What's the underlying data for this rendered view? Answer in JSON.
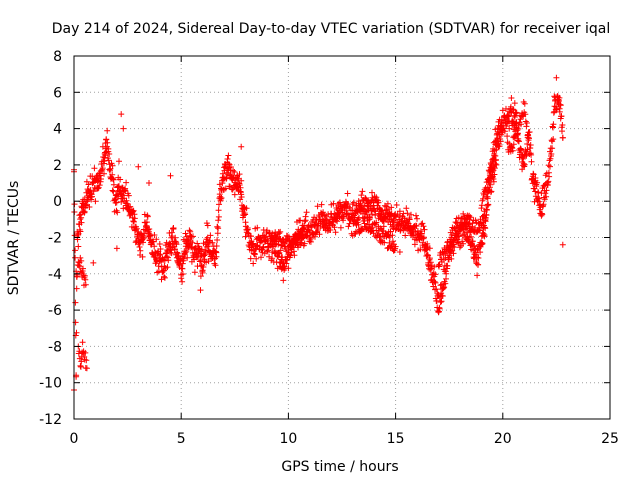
{
  "chart_data": {
    "type": "scatter",
    "title": "Day 214 of 2024, Sidereal Day-to-day VTEC variation (SDTVAR) for receiver iqal",
    "xlabel": "GPS time / hours",
    "ylabel": "SDTVAR / TECUs",
    "xlim": [
      0,
      25
    ],
    "ylim": [
      -12,
      8
    ],
    "xticks": [
      0,
      5,
      10,
      15,
      20,
      25
    ],
    "yticks": [
      -12,
      -10,
      -8,
      -6,
      -4,
      -2,
      0,
      2,
      4,
      6,
      8
    ],
    "grid": true,
    "marker": "+",
    "series": [
      {
        "name": "SDTVAR",
        "color": "#ff0000",
        "profile": {
          "x": [
            0.0,
            0.05,
            0.1,
            0.15,
            0.25,
            0.35,
            0.5,
            0.6,
            0.8,
            1.0,
            1.2,
            1.4,
            1.5,
            1.7,
            1.9,
            2.1,
            2.3,
            2.6,
            2.8,
            3.0,
            3.2,
            3.4,
            3.6,
            3.8,
            4.0,
            4.2,
            4.4,
            4.6,
            4.8,
            5.0,
            5.2,
            5.4,
            5.6,
            5.8,
            6.0,
            6.2,
            6.4,
            6.6,
            6.8,
            7.0,
            7.2,
            7.4,
            7.6,
            7.8,
            8.0,
            8.2,
            8.4,
            8.6,
            8.8,
            9.0,
            9.2,
            9.4,
            9.6,
            9.8,
            10.0,
            10.2,
            10.4,
            10.6,
            10.8,
            11.0,
            11.2,
            11.4,
            11.6,
            11.8,
            12.0,
            12.2,
            12.4,
            12.6,
            12.8,
            13.0,
            13.2,
            13.4,
            13.6,
            13.8,
            14.0,
            14.2,
            14.4,
            14.6,
            14.8,
            15.0,
            15.2,
            15.4,
            15.6,
            15.8,
            16.0,
            16.2,
            16.4,
            16.6,
            16.8,
            17.0,
            17.2,
            17.4,
            17.6,
            17.8,
            18.0,
            18.2,
            18.4,
            18.6,
            18.8,
            19.0,
            19.2,
            19.4,
            19.6,
            19.8,
            20.0,
            20.2,
            20.4,
            20.6,
            20.8,
            21.0,
            21.2,
            21.4,
            21.6,
            21.8,
            22.0,
            22.2,
            22.4,
            22.6,
            22.8
          ],
          "y": [
            1.2,
            -3.0,
            -9.5,
            -2.0,
            -1.5,
            -0.5,
            -0.3,
            0.2,
            0.6,
            0.9,
            1.3,
            2.4,
            3.3,
            1.8,
            0.2,
            0.5,
            0.4,
            -0.3,
            -1.0,
            -2.5,
            -2.2,
            -1.0,
            -2.3,
            -3.0,
            -3.2,
            -3.5,
            -3.0,
            -1.8,
            -2.8,
            -3.8,
            -2.5,
            -2.0,
            -3.0,
            -2.6,
            -3.5,
            -2.2,
            -2.7,
            -3.0,
            0.0,
            1.5,
            1.8,
            1.3,
            1.1,
            0.2,
            -1.0,
            -2.2,
            -2.5,
            -2.4,
            -2.2,
            -2.0,
            -2.3,
            -2.6,
            -3.2,
            -3.5,
            -2.8,
            -2.5,
            -2.0,
            -1.8,
            -1.5,
            -1.8,
            -1.5,
            -1.2,
            -1.0,
            -1.3,
            -1.1,
            -0.8,
            -0.5,
            -0.4,
            -0.6,
            -0.9,
            -0.6,
            -0.4,
            -0.2,
            -0.5,
            -0.1,
            -0.3,
            -0.8,
            -0.7,
            -1.0,
            -1.0,
            -1.2,
            -1.1,
            -1.4,
            -1.6,
            -1.8,
            -2.0,
            -2.4,
            -3.5,
            -4.5,
            -5.8,
            -5.0,
            -3.5,
            -2.4,
            -2.0,
            -1.7,
            -1.5,
            -1.8,
            -2.5,
            -3.2,
            -2.5,
            -1.0,
            1.5,
            3.0,
            3.8,
            4.2,
            4.6,
            4.8,
            4.5,
            2.6,
            2.0,
            3.5,
            1.2,
            0.5,
            -0.5,
            0.5,
            2.0,
            5.0,
            6.0,
            3.5
          ]
        },
        "branches": [
          {
            "x": [
              0.2,
              0.3,
              0.4,
              0.5,
              0.6
            ],
            "y": [
              -8.2,
              -9.0,
              -8.0,
              -8.6,
              -9.2
            ]
          },
          {
            "x": [
              0.1,
              0.25,
              0.4,
              0.55
            ],
            "y": [
              -4.2,
              -3.2,
              -4.0,
              -4.6
            ]
          },
          {
            "x": [
              9.2,
              9.5,
              9.8,
              10.1,
              10.4,
              10.7
            ],
            "y": [
              -2.2,
              -2.0,
              -2.1,
              -2.3,
              -2.2,
              -2.0
            ]
          },
          {
            "x": [
              13.0,
              13.2,
              13.4,
              13.6,
              13.8,
              14.0,
              14.2,
              14.4,
              14.6,
              14.8,
              15.0
            ],
            "y": [
              -1.5,
              -1.4,
              -1.3,
              -1.2,
              -1.3,
              -1.5,
              -1.7,
              -2.0,
              -2.2,
              -2.4,
              -2.5
            ]
          },
          {
            "x": [
              17.0,
              17.3,
              17.6,
              17.9,
              18.2,
              18.5,
              18.8,
              19.1,
              19.4,
              19.7
            ],
            "y": [
              -3.4,
              -2.8,
              -2.0,
              -1.3,
              -1.0,
              -1.2,
              -1.5,
              -1.2,
              0.5,
              2.0
            ]
          },
          {
            "x": [
              19.0,
              19.2,
              19.4,
              19.6,
              19.8,
              20.0
            ],
            "y": [
              -0.3,
              0.5,
              1.4,
              2.3,
              3.2,
              4.0
            ]
          },
          {
            "x": [
              20.2,
              20.4,
              20.6,
              20.8,
              21.0,
              21.2
            ],
            "y": [
              3.2,
              2.8,
              3.6,
              4.4,
              5.2,
              3.5
            ]
          }
        ],
        "outliers": [
          {
            "x": 2.2,
            "y": 4.8
          },
          {
            "x": 2.3,
            "y": 4.0
          },
          {
            "x": 2.1,
            "y": 2.2
          },
          {
            "x": 2.0,
            "y": -2.6
          },
          {
            "x": 2.6,
            "y": -0.8
          },
          {
            "x": 3.0,
            "y": 1.9
          },
          {
            "x": 3.5,
            "y": 1.0
          },
          {
            "x": 0.9,
            "y": -3.4
          },
          {
            "x": 15.2,
            "y": -2.8
          },
          {
            "x": 22.8,
            "y": -2.4
          },
          {
            "x": 22.5,
            "y": 6.8
          },
          {
            "x": 0.0,
            "y": -10.4
          },
          {
            "x": 5.9,
            "y": -4.9
          },
          {
            "x": 7.8,
            "y": 3.0
          },
          {
            "x": 4.5,
            "y": 1.4
          }
        ]
      }
    ]
  }
}
